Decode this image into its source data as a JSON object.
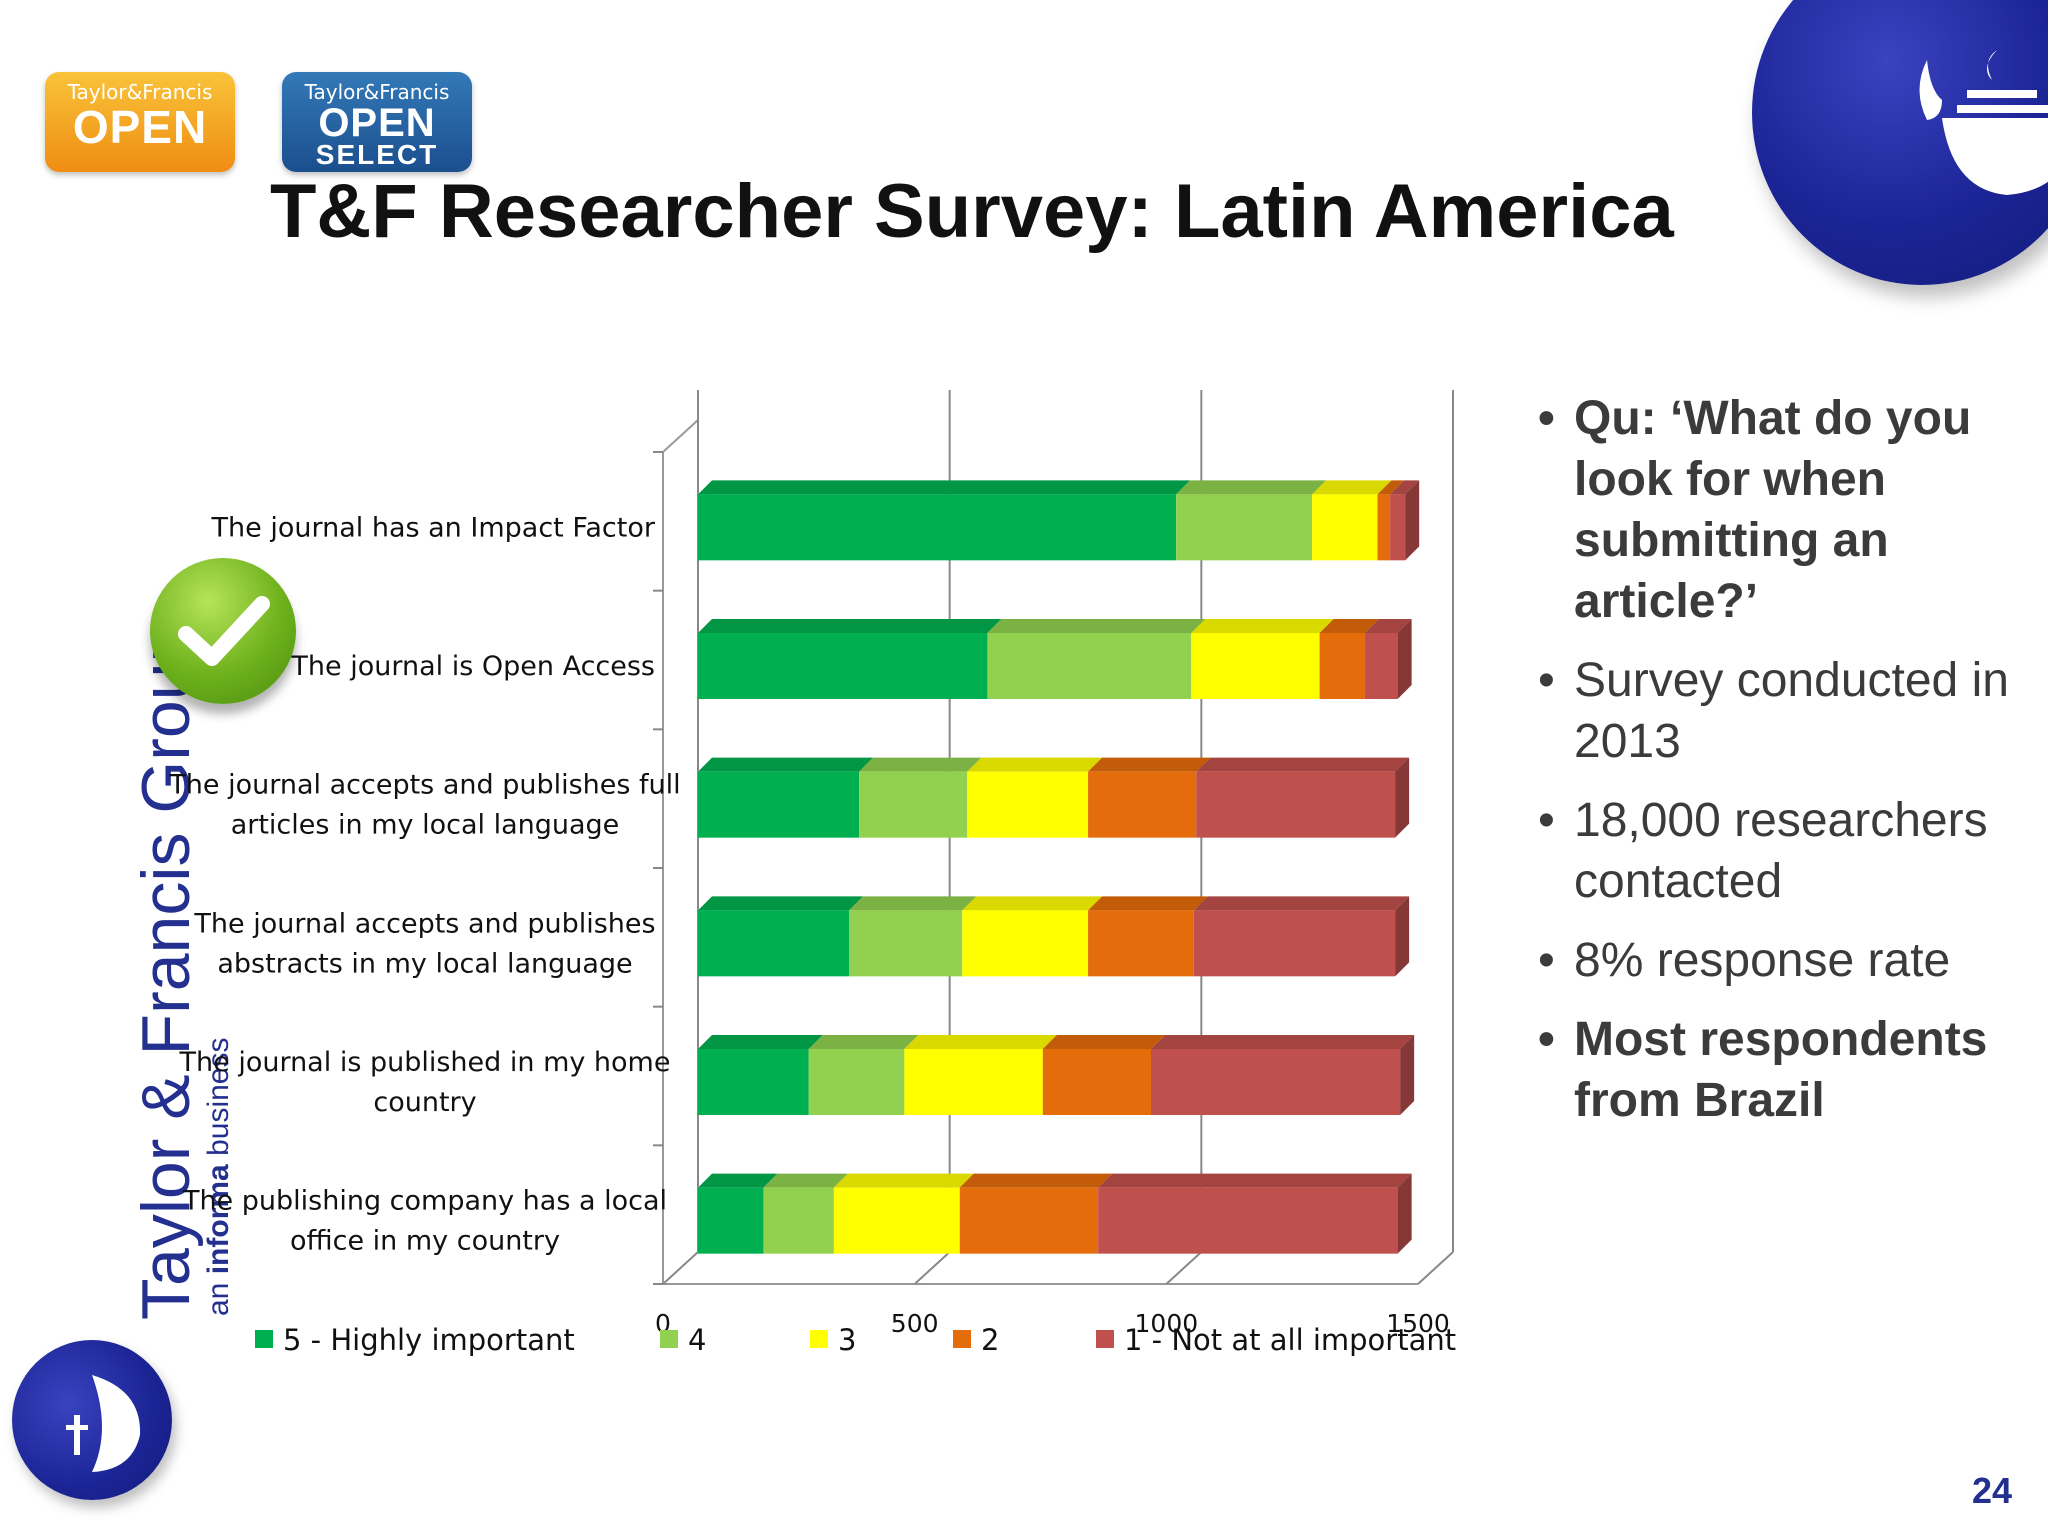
{
  "badges": {
    "open": {
      "brand": "Taylor&Francis",
      "label": "OPEN"
    },
    "open_select": {
      "brand": "Taylor&Francis",
      "label": "OPEN",
      "sub": "SELECT"
    }
  },
  "title": "T&F Researcher Survey: Latin America",
  "brand": {
    "name": "Taylor & Francis Group",
    "tagline_prefix": "an ",
    "tagline_bold": "informa",
    "tagline_suffix": " business"
  },
  "bullets": [
    {
      "text": "Qu: ‘What do you look for when submitting an article?’",
      "bold": true
    },
    {
      "text": "Survey conducted in 2013",
      "bold": false
    },
    {
      "text": "18,000 researchers contacted",
      "bold": false
    },
    {
      "text": "8% response rate",
      "bold": false
    },
    {
      "text": "Most respondents from Brazil",
      "bold": true
    }
  ],
  "page_number": "24",
  "chart_data": {
    "type": "bar",
    "orientation": "horizontal",
    "stacked": true,
    "categories": [
      [
        "The journal has an Impact Factor"
      ],
      [
        "The journal is Open Access"
      ],
      [
        "The journal accepts and publishes full",
        "articles in my local language"
      ],
      [
        "The journal accepts and publishes",
        "abstracts in my local language"
      ],
      [
        "The journal is published in my home",
        "country"
      ],
      [
        "The publishing company has a local",
        "office in my country"
      ]
    ],
    "series": [
      {
        "name": "5 - Highly important",
        "color": "#00b050",
        "values": [
          950,
          575,
          320,
          300,
          220,
          130
        ]
      },
      {
        "name": "4",
        "color": "#92d050",
        "values": [
          270,
          405,
          215,
          225,
          190,
          140
        ]
      },
      {
        "name": "3",
        "color": "#ffff00",
        "values": [
          130,
          255,
          240,
          250,
          275,
          250
        ]
      },
      {
        "name": "2",
        "color": "#e46c0a",
        "values": [
          25,
          90,
          215,
          210,
          215,
          275
        ]
      },
      {
        "name": "1 - Not at all important",
        "color": "#c0504d",
        "values": [
          30,
          65,
          395,
          400,
          495,
          595
        ]
      }
    ],
    "xlim": [
      0,
      1500
    ],
    "xticks": [
      0,
      500,
      1000,
      1500
    ],
    "highlighted_category": 1,
    "grid": true,
    "legend_position": "bottom"
  }
}
